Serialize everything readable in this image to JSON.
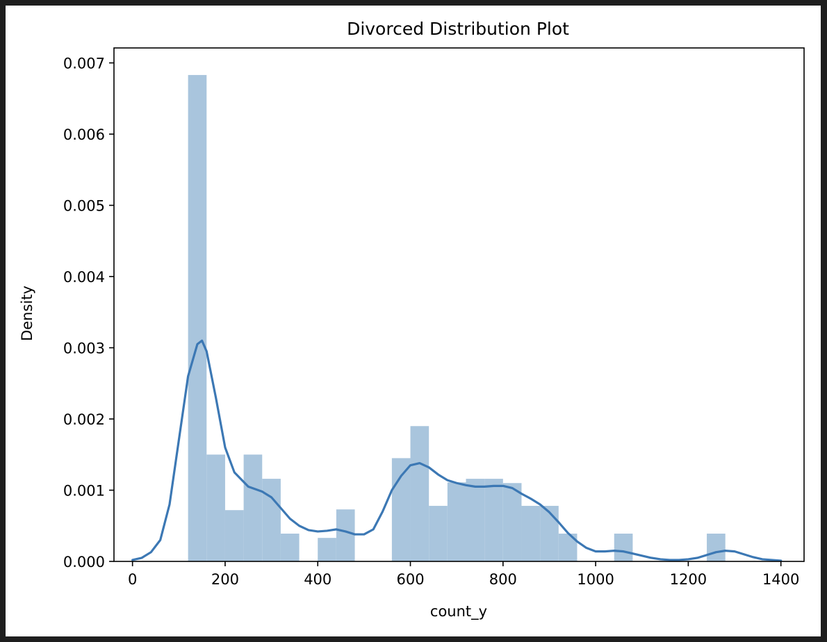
{
  "chart_data": {
    "type": "bar",
    "title": "Divorced Distribution Plot",
    "xlabel": "count_y",
    "ylabel": "Density",
    "xlim": [
      -40,
      1450
    ],
    "ylim": [
      0,
      0.00721
    ],
    "xticks": [
      0,
      200,
      400,
      600,
      800,
      1000,
      1200,
      1400
    ],
    "xtick_labels": [
      "0",
      "200",
      "400",
      "600",
      "800",
      "1000",
      "1200",
      "1400"
    ],
    "yticks": [
      0,
      0.001,
      0.002,
      0.003,
      0.004,
      0.005,
      0.006,
      0.007
    ],
    "ytick_labels": [
      "0.000",
      "0.001",
      "0.002",
      "0.003",
      "0.004",
      "0.005",
      "0.006",
      "0.007"
    ],
    "grid": false,
    "histogram": {
      "bin_edges": [
        120,
        160,
        200,
        240,
        280,
        320,
        360,
        400,
        440,
        480,
        520,
        560,
        600,
        640,
        680,
        720,
        760,
        800,
        840,
        880,
        920,
        960,
        1000,
        1040,
        1080,
        1120,
        1160,
        1200,
        1240,
        1280
      ],
      "densities": [
        0.00683,
        0.0015,
        0.00072,
        0.0015,
        0.00116,
        0.00039,
        0,
        0.00033,
        0.00073,
        0,
        0,
        0.00145,
        0.0019,
        0.00078,
        0.00111,
        0.00116,
        0.00116,
        0.0011,
        0.00078,
        0.00078,
        0.00039,
        0,
        0,
        0.00039,
        0,
        0,
        0,
        0,
        0.00039
      ],
      "color": "#a9c5dd"
    },
    "kde": {
      "x": [
        0,
        20,
        40,
        60,
        80,
        100,
        120,
        140,
        150,
        160,
        180,
        200,
        220,
        250,
        280,
        300,
        320,
        340,
        360,
        380,
        400,
        420,
        440,
        460,
        480,
        500,
        520,
        540,
        560,
        580,
        600,
        620,
        640,
        660,
        680,
        700,
        720,
        740,
        760,
        780,
        800,
        820,
        840,
        860,
        880,
        900,
        920,
        940,
        960,
        980,
        1000,
        1020,
        1040,
        1060,
        1080,
        1100,
        1120,
        1140,
        1160,
        1180,
        1200,
        1220,
        1240,
        1260,
        1280,
        1300,
        1320,
        1340,
        1360,
        1380,
        1400
      ],
      "y": [
        2e-05,
        5e-05,
        0.00013,
        0.0003,
        0.0008,
        0.0017,
        0.0026,
        0.00305,
        0.0031,
        0.00295,
        0.0023,
        0.0016,
        0.00125,
        0.00105,
        0.00098,
        0.0009,
        0.00075,
        0.0006,
        0.0005,
        0.00044,
        0.00042,
        0.00043,
        0.00045,
        0.00042,
        0.00038,
        0.00038,
        0.00045,
        0.0007,
        0.001,
        0.0012,
        0.00135,
        0.00138,
        0.00132,
        0.00122,
        0.00114,
        0.0011,
        0.00107,
        0.00105,
        0.00105,
        0.00106,
        0.00106,
        0.00103,
        0.00095,
        0.00088,
        0.0008,
        0.00069,
        0.00055,
        0.0004,
        0.00028,
        0.00019,
        0.00014,
        0.00014,
        0.00015,
        0.00014,
        0.00011,
        8e-05,
        5e-05,
        3e-05,
        2e-05,
        2e-05,
        3e-05,
        5e-05,
        9e-05,
        0.00013,
        0.00015,
        0.00014,
        0.0001,
        6e-05,
        3e-05,
        2e-05,
        1e-05
      ],
      "color": "#3c78b4"
    }
  }
}
